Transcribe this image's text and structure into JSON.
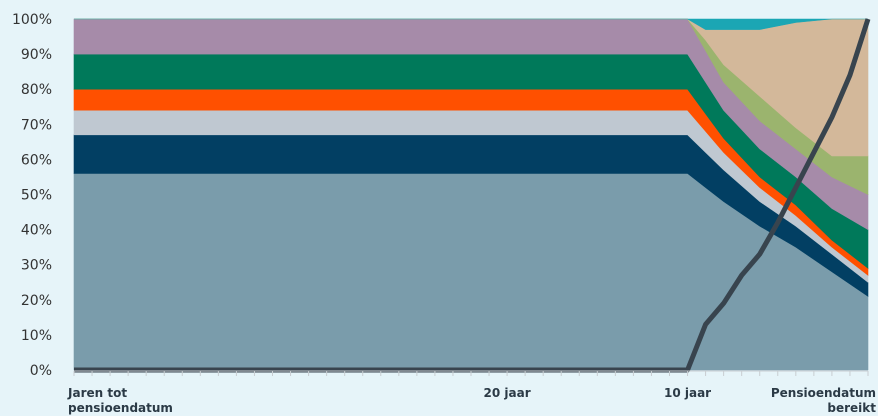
{
  "chart_data": {
    "type": "area",
    "stacked": true,
    "normalized_percent": true,
    "ylim": [
      0,
      100
    ],
    "y_ticks": [
      "0%",
      "10%",
      "20%",
      "30%",
      "40%",
      "50%",
      "60%",
      "70%",
      "80%",
      "90%",
      "100%"
    ],
    "x_tick_labels": [
      {
        "x": 0,
        "lines": [
          "Jaren tot",
          "pensioendatum"
        ]
      },
      {
        "x": 24,
        "lines": [
          "20 jaar"
        ]
      },
      {
        "x": 34,
        "lines": [
          "10 jaar"
        ]
      },
      {
        "x": 44,
        "lines": [
          "Pensioendatum",
          "bereikt"
        ]
      }
    ],
    "x": [
      0,
      34,
      35,
      36,
      38,
      40,
      42,
      44
    ],
    "series": [
      {
        "color": "#7a9cab",
        "values": [
          56,
          56,
          52,
          48,
          41,
          35,
          28,
          21
        ]
      },
      {
        "color": "#023f63",
        "values": [
          11,
          11,
          10,
          9,
          7,
          6,
          5,
          4
        ]
      },
      {
        "color": "#bfc8d1",
        "values": [
          7,
          7,
          6,
          5,
          4,
          3,
          2,
          2
        ]
      },
      {
        "color": "#ff5000",
        "values": [
          6,
          6,
          5,
          4,
          3,
          3,
          2,
          2
        ]
      },
      {
        "color": "#00795a",
        "values": [
          10,
          10,
          9,
          8,
          8,
          8,
          9,
          11
        ]
      },
      {
        "color": "#a68ba9",
        "values": [
          10,
          10,
          9,
          8,
          8,
          8,
          9,
          10
        ]
      },
      {
        "color": "#9bb46e",
        "values": [
          0,
          0,
          3,
          5,
          7,
          6,
          6,
          11
        ]
      },
      {
        "color": "#d3b89a",
        "values": [
          0,
          0,
          3,
          10,
          19,
          30,
          39,
          39
        ]
      },
      {
        "color": "#1ba6b4",
        "values": [
          0,
          0,
          3,
          3,
          3,
          1,
          0,
          0
        ]
      }
    ],
    "line": {
      "color": "#38444e",
      "x": [
        0,
        34,
        35,
        36,
        37,
        38,
        39,
        40,
        41,
        42,
        43,
        44
      ],
      "values": [
        0,
        0,
        13,
        19,
        27,
        33,
        42,
        52,
        62,
        72,
        84,
        100
      ]
    }
  }
}
